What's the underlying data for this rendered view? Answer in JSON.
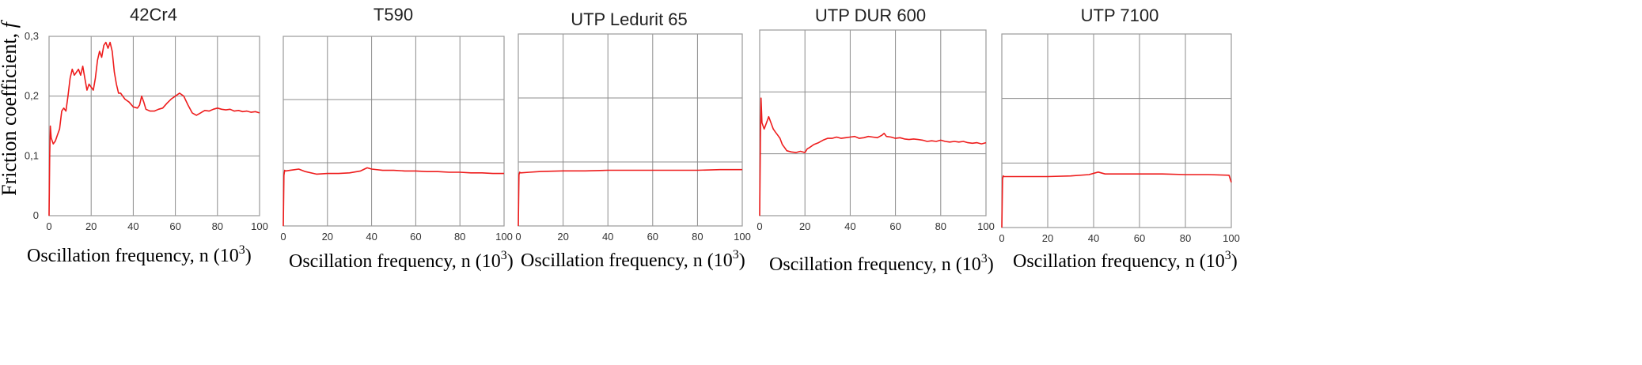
{
  "figure": {
    "ylabel_main": "Friction coefficient, ",
    "ylabel_symbol": "f",
    "xlabel_main": "Oscillation frequency,  n (10",
    "xlabel_sup": "3",
    "xlabel_close": ")",
    "series_color": "#ee1c1c"
  },
  "chart_data": [
    {
      "type": "line",
      "title": "42Cr4",
      "xlim": [
        0,
        100
      ],
      "ylim": [
        0,
        0.3
      ],
      "xticks": [
        0,
        20,
        40,
        60,
        80,
        100
      ],
      "yticks": [
        0,
        0.1,
        0.2,
        0.3
      ],
      "ytick_labels": [
        "0",
        "0,1",
        "0,2",
        "0,3"
      ],
      "grid": true,
      "x": [
        0,
        0.3,
        0.6,
        1,
        2,
        3,
        4,
        5,
        6,
        7,
        8,
        9,
        10,
        11,
        12,
        13,
        14,
        15,
        16,
        17,
        18,
        19,
        20,
        21,
        22,
        23,
        24,
        25,
        26,
        27,
        28,
        29,
        30,
        31,
        32,
        33,
        34,
        35,
        36,
        38,
        40,
        42,
        43,
        44,
        45,
        46,
        48,
        50,
        52,
        54,
        56,
        58,
        60,
        62,
        64,
        66,
        68,
        70,
        72,
        74,
        76,
        78,
        80,
        82,
        84,
        86,
        88,
        90,
        92,
        94,
        96,
        98,
        100
      ],
      "y": [
        0,
        0.1,
        0.15,
        0.13,
        0.12,
        0.125,
        0.135,
        0.145,
        0.175,
        0.18,
        0.175,
        0.2,
        0.23,
        0.245,
        0.235,
        0.24,
        0.245,
        0.235,
        0.25,
        0.23,
        0.21,
        0.22,
        0.215,
        0.21,
        0.23,
        0.26,
        0.275,
        0.265,
        0.285,
        0.29,
        0.28,
        0.29,
        0.275,
        0.24,
        0.22,
        0.205,
        0.205,
        0.2,
        0.195,
        0.19,
        0.182,
        0.18,
        0.185,
        0.2,
        0.19,
        0.178,
        0.175,
        0.175,
        0.178,
        0.18,
        0.188,
        0.195,
        0.2,
        0.205,
        0.2,
        0.185,
        0.172,
        0.168,
        0.172,
        0.176,
        0.175,
        0.178,
        0.18,
        0.178,
        0.177,
        0.178,
        0.175,
        0.176,
        0.174,
        0.175,
        0.173,
        0.174,
        0.172
      ]
    },
    {
      "type": "line",
      "title": "T590",
      "xlim": [
        0,
        100
      ],
      "ylim": [
        0,
        0.3
      ],
      "xticks": [
        0,
        20,
        40,
        60,
        80,
        100
      ],
      "yticks": [
        0,
        0.1,
        0.2,
        0.3
      ],
      "grid": true,
      "x": [
        0,
        0.3,
        0.6,
        1,
        3,
        5,
        7,
        10,
        15,
        20,
        25,
        30,
        35,
        38,
        40,
        45,
        50,
        55,
        60,
        65,
        70,
        75,
        80,
        85,
        90,
        95,
        100
      ],
      "y": [
        0,
        0.08,
        0.088,
        0.087,
        0.088,
        0.089,
        0.09,
        0.086,
        0.082,
        0.083,
        0.083,
        0.084,
        0.087,
        0.092,
        0.09,
        0.088,
        0.088,
        0.087,
        0.087,
        0.086,
        0.086,
        0.085,
        0.085,
        0.084,
        0.084,
        0.083,
        0.083
      ]
    },
    {
      "type": "line",
      "title": "UTP Ledurit 65",
      "xlim": [
        0,
        100
      ],
      "ylim": [
        0,
        0.3
      ],
      "xticks": [
        0,
        20,
        40,
        60,
        80,
        100
      ],
      "yticks": [
        0,
        0.1,
        0.2,
        0.3
      ],
      "grid": true,
      "x": [
        0,
        0.3,
        0.6,
        1,
        5,
        10,
        20,
        30,
        40,
        50,
        60,
        70,
        80,
        90,
        100
      ],
      "y": [
        0,
        0.08,
        0.084,
        0.083,
        0.084,
        0.085,
        0.086,
        0.086,
        0.087,
        0.087,
        0.087,
        0.087,
        0.087,
        0.088,
        0.088
      ]
    },
    {
      "type": "line",
      "title": "UTP DUR 600",
      "xlim": [
        0,
        100
      ],
      "ylim": [
        0,
        0.3
      ],
      "xticks": [
        0,
        20,
        40,
        60,
        80,
        100
      ],
      "yticks": [
        0,
        0.1,
        0.2,
        0.3
      ],
      "grid": true,
      "x": [
        0,
        0.3,
        0.6,
        1,
        2,
        3,
        4,
        5,
        6,
        7,
        8,
        9,
        10,
        11,
        12,
        14,
        16,
        18,
        20,
        21,
        22,
        24,
        26,
        28,
        30,
        32,
        34,
        36,
        38,
        40,
        42,
        44,
        46,
        48,
        50,
        52,
        54,
        55,
        56,
        58,
        60,
        62,
        64,
        66,
        68,
        70,
        72,
        74,
        76,
        78,
        80,
        82,
        84,
        86,
        88,
        90,
        92,
        94,
        96,
        98,
        100
      ],
      "y": [
        0,
        0.12,
        0.19,
        0.15,
        0.14,
        0.15,
        0.16,
        0.15,
        0.14,
        0.135,
        0.13,
        0.125,
        0.115,
        0.11,
        0.105,
        0.103,
        0.102,
        0.104,
        0.102,
        0.108,
        0.11,
        0.115,
        0.118,
        0.122,
        0.125,
        0.125,
        0.127,
        0.125,
        0.126,
        0.127,
        0.128,
        0.125,
        0.126,
        0.128,
        0.127,
        0.126,
        0.13,
        0.133,
        0.128,
        0.127,
        0.125,
        0.126,
        0.124,
        0.123,
        0.124,
        0.123,
        0.122,
        0.12,
        0.121,
        0.12,
        0.122,
        0.12,
        0.119,
        0.12,
        0.119,
        0.12,
        0.118,
        0.117,
        0.118,
        0.116,
        0.118
      ]
    },
    {
      "type": "line",
      "title": "UTP 7100",
      "xlim": [
        0,
        100
      ],
      "ylim": [
        0,
        0.3
      ],
      "xticks": [
        0,
        20,
        40,
        60,
        80,
        100
      ],
      "yticks": [
        0,
        0.1,
        0.2,
        0.3
      ],
      "grid": true,
      "x": [
        0,
        0.3,
        0.6,
        1,
        5,
        10,
        20,
        30,
        38,
        42,
        45,
        50,
        55,
        60,
        70,
        80,
        90,
        99,
        100
      ],
      "y": [
        0,
        0.075,
        0.08,
        0.079,
        0.079,
        0.079,
        0.079,
        0.08,
        0.082,
        0.086,
        0.083,
        0.083,
        0.083,
        0.083,
        0.083,
        0.082,
        0.082,
        0.081,
        0.07
      ]
    }
  ]
}
